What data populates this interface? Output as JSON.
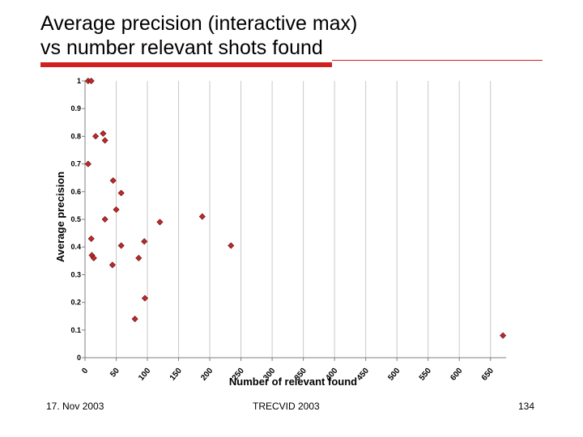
{
  "slide": {
    "title_line1": "Average precision (interactive max)",
    "title_line2": "vs  number relevant shots found",
    "footer_date": "17. Nov 2003",
    "footer_center": "TRECVID 2003",
    "page_number": "134",
    "accent_color": "#d02020"
  },
  "chart_data": {
    "type": "scatter",
    "title": "",
    "xlabel": "Number of relevant found",
    "ylabel": "Average precision",
    "xlim": [
      0,
      675
    ],
    "ylim": [
      0,
      1
    ],
    "x_ticks": [
      0,
      50,
      100,
      150,
      200,
      250,
      300,
      350,
      400,
      450,
      500,
      550,
      600,
      650
    ],
    "x_tick_labels": [
      "0",
      "50",
      "100",
      "150",
      "200",
      "250",
      "300",
      "350",
      "400",
      "450",
      "500",
      "550",
      "600",
      "650"
    ],
    "y_ticks": [
      0,
      0.1,
      0.2,
      0.3,
      0.4,
      0.5,
      0.6,
      0.7,
      0.8,
      0.9,
      1
    ],
    "y_tick_labels": [
      "0",
      "0.1",
      "0.2",
      "0.3",
      "0.4",
      "0.5",
      "0.6",
      "0.7",
      "0.8",
      "0.9",
      "1"
    ],
    "grid": "vertical",
    "marker_color": "#c0282a",
    "series": [
      {
        "points": [
          [
            5,
            1.0
          ],
          [
            10,
            1.0
          ],
          [
            17,
            0.8
          ],
          [
            29,
            0.81
          ],
          [
            32,
            0.785
          ],
          [
            5,
            0.7
          ],
          [
            45,
            0.64
          ],
          [
            58,
            0.595
          ],
          [
            50,
            0.535
          ],
          [
            32,
            0.5
          ],
          [
            10,
            0.43
          ],
          [
            11,
            0.37
          ],
          [
            14,
            0.36
          ],
          [
            58,
            0.405
          ],
          [
            44,
            0.335
          ],
          [
            86,
            0.36
          ],
          [
            95,
            0.42
          ],
          [
            120,
            0.49
          ],
          [
            188,
            0.51
          ],
          [
            234,
            0.405
          ],
          [
            96,
            0.215
          ],
          [
            80,
            0.14
          ],
          [
            670,
            0.08
          ]
        ]
      }
    ]
  }
}
